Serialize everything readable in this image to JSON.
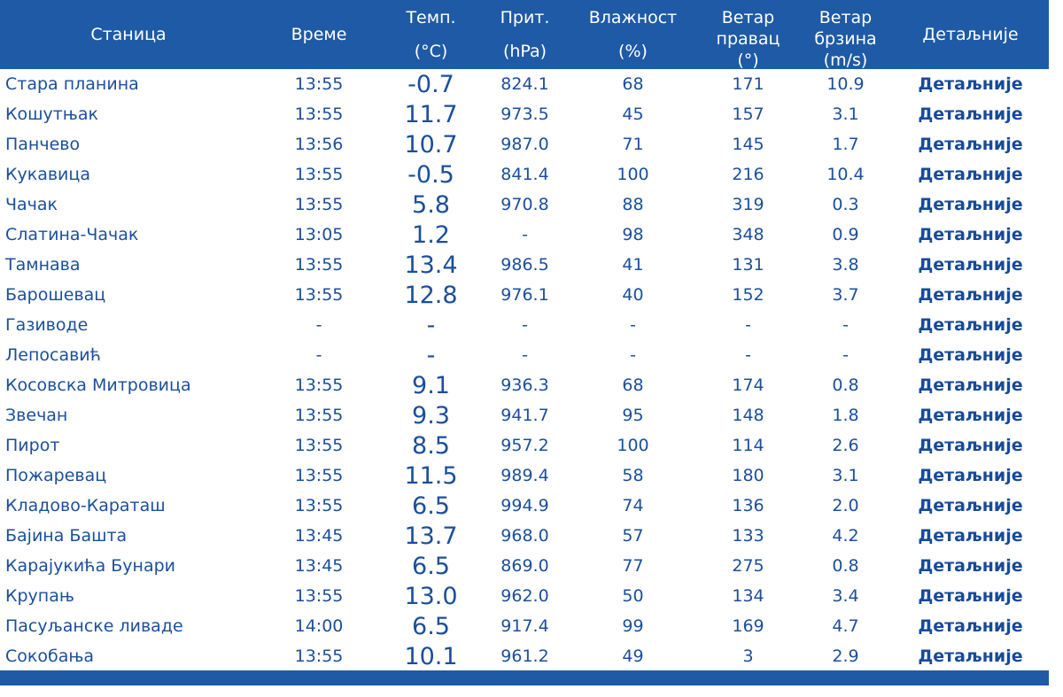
{
  "headers": {
    "station": "Станица",
    "time": "Време",
    "temp_line1": "Темп.",
    "temp_line2": "(°C)",
    "pressure_line1": "Прит.",
    "pressure_line2": "(hPa)",
    "humidity_line1": "Влажност",
    "humidity_line2": "(%)",
    "wind_dir_line1": "Ветар",
    "wind_dir_line2": "правац",
    "wind_dir_line3": "(°)",
    "wind_speed_line1": "Ветар",
    "wind_speed_line2": "брзина",
    "wind_speed_line3": "(m/s)",
    "details": "Детаљније"
  },
  "rows": [
    {
      "station": "Стара планина",
      "time": "13:55",
      "temp": "-0.7",
      "pressure": "824.1",
      "humidity": "68",
      "wind_dir": "171",
      "wind_speed": "10.9",
      "details": "Детаљније"
    },
    {
      "station": "Кошутњак",
      "time": "13:55",
      "temp": "11.7",
      "pressure": "973.5",
      "humidity": "45",
      "wind_dir": "157",
      "wind_speed": "3.1",
      "details": "Детаљније"
    },
    {
      "station": "Панчево",
      "time": "13:56",
      "temp": "10.7",
      "pressure": "987.0",
      "humidity": "71",
      "wind_dir": "145",
      "wind_speed": "1.7",
      "details": "Детаљније"
    },
    {
      "station": "Кукавица",
      "time": "13:55",
      "temp": "-0.5",
      "pressure": "841.4",
      "humidity": "100",
      "wind_dir": "216",
      "wind_speed": "10.4",
      "details": "Детаљније"
    },
    {
      "station": "Чачак",
      "time": "13:55",
      "temp": "5.8",
      "pressure": "970.8",
      "humidity": "88",
      "wind_dir": "319",
      "wind_speed": "0.3",
      "details": "Детаљније"
    },
    {
      "station": "Слатина-Чачак",
      "time": "13:05",
      "temp": "1.2",
      "pressure": "-",
      "humidity": "98",
      "wind_dir": "348",
      "wind_speed": "0.9",
      "details": "Детаљније"
    },
    {
      "station": "Тамнава",
      "time": "13:55",
      "temp": "13.4",
      "pressure": "986.5",
      "humidity": "41",
      "wind_dir": "131",
      "wind_speed": "3.8",
      "details": "Детаљније"
    },
    {
      "station": "Барошевац",
      "time": "13:55",
      "temp": "12.8",
      "pressure": "976.1",
      "humidity": "40",
      "wind_dir": "152",
      "wind_speed": "3.7",
      "details": "Детаљније"
    },
    {
      "station": "Газиводе",
      "time": "-",
      "temp": "-",
      "pressure": "-",
      "humidity": "-",
      "wind_dir": "-",
      "wind_speed": "-",
      "details": "Детаљније"
    },
    {
      "station": "Лепосавић",
      "time": "-",
      "temp": "-",
      "pressure": "-",
      "humidity": "-",
      "wind_dir": "-",
      "wind_speed": "-",
      "details": "Детаљније"
    },
    {
      "station": "Косовска Митровица",
      "time": "13:55",
      "temp": "9.1",
      "pressure": "936.3",
      "humidity": "68",
      "wind_dir": "174",
      "wind_speed": "0.8",
      "details": "Детаљније"
    },
    {
      "station": "Звечан",
      "time": "13:55",
      "temp": "9.3",
      "pressure": "941.7",
      "humidity": "95",
      "wind_dir": "148",
      "wind_speed": "1.8",
      "details": "Детаљније"
    },
    {
      "station": "Пирот",
      "time": "13:55",
      "temp": "8.5",
      "pressure": "957.2",
      "humidity": "100",
      "wind_dir": "114",
      "wind_speed": "2.6",
      "details": "Детаљније"
    },
    {
      "station": "Пожаревац",
      "time": "13:55",
      "temp": "11.5",
      "pressure": "989.4",
      "humidity": "58",
      "wind_dir": "180",
      "wind_speed": "3.1",
      "details": "Детаљније"
    },
    {
      "station": "Кладово-Караташ",
      "time": "13:55",
      "temp": "6.5",
      "pressure": "994.9",
      "humidity": "74",
      "wind_dir": "136",
      "wind_speed": "2.0",
      "details": "Детаљније"
    },
    {
      "station": "Бајина Башта",
      "time": "13:45",
      "temp": "13.7",
      "pressure": "968.0",
      "humidity": "57",
      "wind_dir": "133",
      "wind_speed": "4.2",
      "details": "Детаљније"
    },
    {
      "station": "Карајукића Бунари",
      "time": "13:45",
      "temp": "6.5",
      "pressure": "869.0",
      "humidity": "77",
      "wind_dir": "275",
      "wind_speed": "0.8",
      "details": "Детаљније"
    },
    {
      "station": "Крупањ",
      "time": "13:55",
      "temp": "13.0",
      "pressure": "962.0",
      "humidity": "50",
      "wind_dir": "134",
      "wind_speed": "3.4",
      "details": "Детаљније"
    },
    {
      "station": "Пасуљанске ливаде",
      "time": "14:00",
      "temp": "6.5",
      "pressure": "917.4",
      "humidity": "99",
      "wind_dir": "169",
      "wind_speed": "4.7",
      "details": "Детаљније"
    },
    {
      "station": "Сокобања",
      "time": "13:55",
      "temp": "10.1",
      "pressure": "961.2",
      "humidity": "49",
      "wind_dir": "3",
      "wind_speed": "2.9",
      "details": "Детаљније"
    }
  ],
  "colors": {
    "header_bg": "#1f5aa6",
    "header_text": "#ffffff",
    "cell_text": "#1a4f9c"
  }
}
